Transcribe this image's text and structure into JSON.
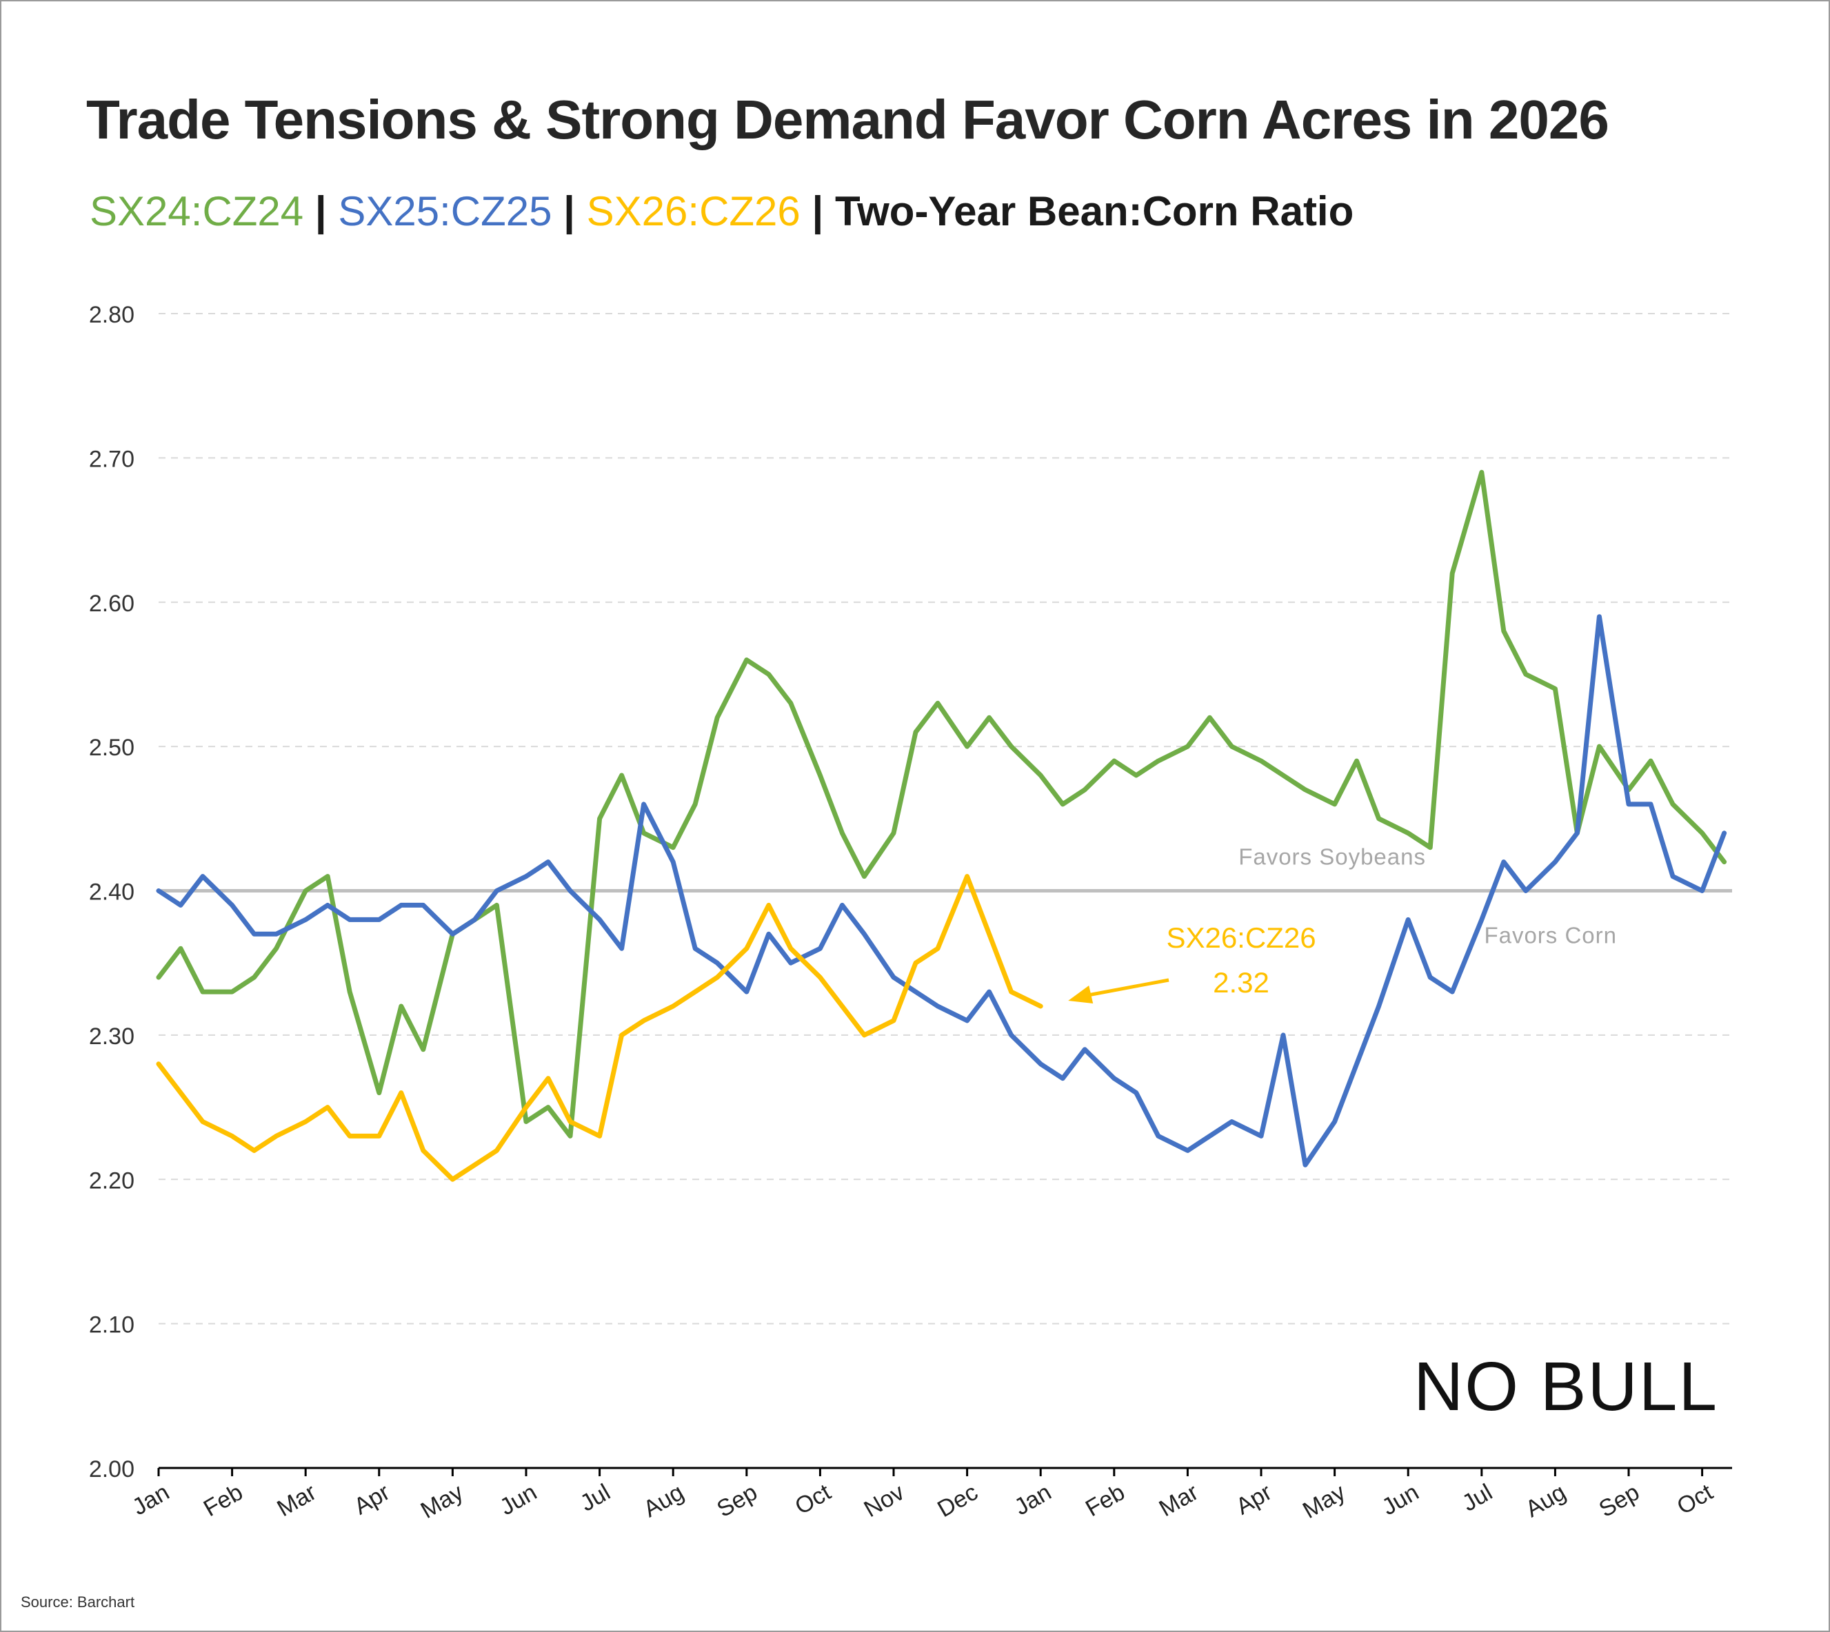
{
  "title": "Trade Tensions & Strong Demand Favor Corn Acres in 2026",
  "subtitle": {
    "s24": "SX24:CZ24",
    "s25": "SX25:CZ25",
    "s26": "SX26:CZ26",
    "sep": "|",
    "two_year": "Two-Year Bean:Corn Ratio"
  },
  "source": "Source: Barchart",
  "brand": "NO BULL",
  "colors": {
    "s24": "#70ad47",
    "s25": "#4472c4",
    "s26": "#ffc000",
    "ref": "#bfbfbf",
    "grid": "#d9d9d9"
  },
  "chart_data": {
    "type": "line",
    "x_tick_labels": [
      "Jan",
      "Feb",
      "Mar",
      "Apr",
      "May",
      "Jun",
      "Jul",
      "Aug",
      "Sep",
      "Oct",
      "Nov",
      "Dec",
      "Jan",
      "Feb",
      "Mar",
      "Apr",
      "May",
      "Jun",
      "Jul",
      "Aug",
      "Sep",
      "Oct"
    ],
    "y_tick_labels": [
      "2.80",
      "2.70",
      "2.60",
      "2.50",
      "2.40",
      "2.30",
      "2.20",
      "2.10",
      "2.00"
    ],
    "ylim": [
      2.0,
      2.8
    ],
    "xlim": [
      0,
      21.3
    ],
    "grid": "horizontal dashed",
    "reference_line": {
      "value": 2.4,
      "label_above": "Favors Soybeans",
      "label_below": "Favors Corn"
    },
    "annotation": {
      "label": "SX26:CZ26",
      "value_text": "2.32",
      "points_to": [
        12.0,
        2.32
      ]
    },
    "series": [
      {
        "name": "SX24:CZ24",
        "color": "#70ad47",
        "x": [
          0,
          0.3,
          0.6,
          1.0,
          1.3,
          1.6,
          2.0,
          2.3,
          2.6,
          3.0,
          3.3,
          3.6,
          4.0,
          4.3,
          4.6,
          5.0,
          5.3,
          5.6,
          6.0,
          6.3,
          6.6,
          7.0,
          7.3,
          7.6,
          8.0,
          8.3,
          8.6,
          9.0,
          9.3,
          9.6,
          10.0,
          10.3,
          10.6,
          11.0,
          11.3,
          11.6,
          12.0,
          12.3,
          12.6,
          13.0,
          13.3,
          13.6,
          14.0,
          14.3,
          14.6,
          15.0,
          15.3,
          15.6,
          16.0,
          16.3,
          16.6,
          17.0,
          17.3,
          17.6,
          18.0,
          18.3,
          18.6,
          19.0,
          19.3,
          19.6,
          20.0,
          20.3,
          20.6,
          21.0,
          21.3
        ],
        "y": [
          2.34,
          2.36,
          2.33,
          2.33,
          2.34,
          2.36,
          2.4,
          2.41,
          2.33,
          2.26,
          2.32,
          2.29,
          2.37,
          2.38,
          2.39,
          2.24,
          2.25,
          2.23,
          2.45,
          2.48,
          2.44,
          2.43,
          2.46,
          2.52,
          2.56,
          2.55,
          2.53,
          2.48,
          2.44,
          2.41,
          2.44,
          2.51,
          2.53,
          2.5,
          2.52,
          2.5,
          2.48,
          2.46,
          2.47,
          2.49,
          2.48,
          2.49,
          2.5,
          2.52,
          2.5,
          2.49,
          2.48,
          2.47,
          2.46,
          2.49,
          2.45,
          2.44,
          2.43,
          2.62,
          2.69,
          2.58,
          2.55,
          2.54,
          2.44,
          2.5,
          2.47,
          2.49,
          2.46,
          2.44,
          2.42
        ]
      },
      {
        "name": "SX25:CZ25",
        "color": "#4472c4",
        "x": [
          0,
          0.3,
          0.6,
          1.0,
          1.3,
          1.6,
          2.0,
          2.3,
          2.6,
          3.0,
          3.3,
          3.6,
          4.0,
          4.3,
          4.6,
          5.0,
          5.3,
          5.6,
          6.0,
          6.3,
          6.6,
          7.0,
          7.3,
          7.6,
          8.0,
          8.3,
          8.6,
          9.0,
          9.3,
          9.6,
          10.0,
          10.3,
          10.6,
          11.0,
          11.3,
          11.6,
          12.0,
          12.3,
          12.6,
          13.0,
          13.3,
          13.6,
          14.0,
          14.3,
          14.6,
          15.0,
          15.3,
          15.6,
          16.0,
          16.3,
          16.6,
          17.0,
          17.3,
          17.6,
          18.0,
          18.3,
          18.6,
          19.0,
          19.3,
          19.6,
          20.0,
          20.3,
          20.6,
          21.0,
          21.3
        ],
        "y": [
          2.4,
          2.39,
          2.41,
          2.39,
          2.37,
          2.37,
          2.38,
          2.39,
          2.38,
          2.38,
          2.39,
          2.39,
          2.37,
          2.38,
          2.4,
          2.41,
          2.42,
          2.4,
          2.38,
          2.36,
          2.46,
          2.42,
          2.36,
          2.35,
          2.33,
          2.37,
          2.35,
          2.36,
          2.39,
          2.37,
          2.34,
          2.33,
          2.32,
          2.31,
          2.33,
          2.3,
          2.28,
          2.27,
          2.29,
          2.27,
          2.26,
          2.23,
          2.22,
          2.23,
          2.24,
          2.23,
          2.3,
          2.21,
          2.24,
          2.28,
          2.32,
          2.38,
          2.34,
          2.33,
          2.38,
          2.42,
          2.4,
          2.42,
          2.44,
          2.59,
          2.46,
          2.46,
          2.41,
          2.4,
          2.44
        ]
      },
      {
        "name": "SX26:CZ26",
        "color": "#ffc000",
        "x": [
          0,
          0.3,
          0.6,
          1.0,
          1.3,
          1.6,
          2.0,
          2.3,
          2.6,
          3.0,
          3.3,
          3.6,
          4.0,
          4.3,
          4.6,
          5.0,
          5.3,
          5.6,
          6.0,
          6.3,
          6.6,
          7.0,
          7.3,
          7.6,
          8.0,
          8.3,
          8.6,
          9.0,
          9.3,
          9.6,
          10.0,
          10.3,
          10.6,
          11.0,
          11.3,
          11.6,
          12.0
        ],
        "y": [
          2.28,
          2.26,
          2.24,
          2.23,
          2.22,
          2.23,
          2.24,
          2.25,
          2.23,
          2.23,
          2.26,
          2.22,
          2.2,
          2.21,
          2.22,
          2.25,
          2.27,
          2.24,
          2.23,
          2.3,
          2.31,
          2.32,
          2.33,
          2.34,
          2.36,
          2.39,
          2.36,
          2.34,
          2.32,
          2.3,
          2.31,
          2.35,
          2.36,
          2.41,
          2.37,
          2.33,
          2.32
        ]
      }
    ]
  }
}
